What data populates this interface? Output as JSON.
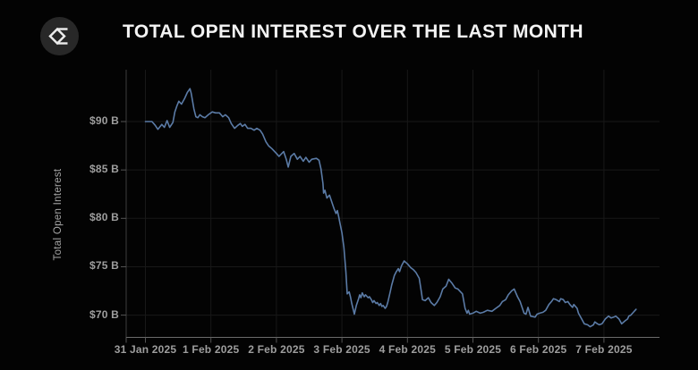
{
  "header": {
    "title": "TOTAL OPEN INTEREST OVER THE LAST MONTH",
    "logo": {
      "name": "sigma-diamond-logo",
      "circle_color": "#282828",
      "glyph_color": "#ededed"
    }
  },
  "colors": {
    "background": "#030303",
    "title_text": "#f4f4f4",
    "axis_label_text": "#9e9e9e",
    "y_axis_title_text": "#a6a6a6",
    "gridline": "#181818",
    "y_axis_line": "#3d3d3d",
    "x_axis_line": "#6b6b6b",
    "tick": "#555555",
    "series_line": "#5b7ba6"
  },
  "chart_data": {
    "type": "line",
    "title": "TOTAL OPEN INTEREST OVER THE LAST MONTH",
    "xlabel": "",
    "ylabel": "Total Open Interest",
    "y_unit": "billions USD",
    "grid": true,
    "legend": "none",
    "ylim": [
      68.3,
      95.3
    ],
    "y_ticks": [
      {
        "label": "$90 B",
        "value": 90
      },
      {
        "label": "$85 B",
        "value": 85
      },
      {
        "label": "$80 B",
        "value": 80
      },
      {
        "label": "$75 B",
        "value": 75
      },
      {
        "label": "$70 B",
        "value": 70
      }
    ],
    "x_ticks": [
      {
        "label": "31 Jan 2025",
        "day": 0
      },
      {
        "label": "1 Feb 2025",
        "day": 1
      },
      {
        "label": "2 Feb 2025",
        "day": 2
      },
      {
        "label": "3 Feb 2025",
        "day": 3
      },
      {
        "label": "4 Feb 2025",
        "day": 4
      },
      {
        "label": "5 Feb 2025",
        "day": 5
      },
      {
        "label": "6 Feb 2025",
        "day": 6
      },
      {
        "label": "7 Feb 2025",
        "day": 7
      }
    ],
    "series": [
      {
        "name": "Total Open Interest",
        "color": "#5b7ba6",
        "points": [
          [
            0.0,
            90.0
          ],
          [
            0.1,
            90.0
          ],
          [
            0.15,
            89.6
          ],
          [
            0.19,
            89.2
          ],
          [
            0.25,
            89.7
          ],
          [
            0.29,
            89.4
          ],
          [
            0.33,
            90.1
          ],
          [
            0.37,
            89.4
          ],
          [
            0.42,
            89.9
          ],
          [
            0.45,
            91.0
          ],
          [
            0.48,
            91.6
          ],
          [
            0.51,
            92.1
          ],
          [
            0.55,
            91.8
          ],
          [
            0.6,
            92.4
          ],
          [
            0.64,
            93.0
          ],
          [
            0.68,
            93.4
          ],
          [
            0.7,
            92.9
          ],
          [
            0.72,
            92.1
          ],
          [
            0.74,
            91.3
          ],
          [
            0.77,
            90.5
          ],
          [
            0.8,
            90.4
          ],
          [
            0.83,
            90.7
          ],
          [
            0.87,
            90.5
          ],
          [
            0.91,
            90.4
          ],
          [
            0.96,
            90.7
          ],
          [
            1.02,
            91.0
          ],
          [
            1.07,
            90.9
          ],
          [
            1.13,
            90.9
          ],
          [
            1.18,
            90.5
          ],
          [
            1.22,
            90.7
          ],
          [
            1.27,
            90.4
          ],
          [
            1.31,
            89.8
          ],
          [
            1.36,
            89.3
          ],
          [
            1.41,
            89.6
          ],
          [
            1.45,
            89.8
          ],
          [
            1.48,
            89.5
          ],
          [
            1.52,
            89.7
          ],
          [
            1.56,
            89.3
          ],
          [
            1.61,
            89.3
          ],
          [
            1.66,
            89.1
          ],
          [
            1.7,
            89.3
          ],
          [
            1.75,
            89.1
          ],
          [
            1.79,
            88.7
          ],
          [
            1.84,
            87.9
          ],
          [
            1.88,
            87.5
          ],
          [
            1.93,
            87.2
          ],
          [
            2.0,
            86.7
          ],
          [
            2.04,
            86.4
          ],
          [
            2.11,
            86.9
          ],
          [
            2.15,
            86.1
          ],
          [
            2.18,
            85.3
          ],
          [
            2.22,
            86.4
          ],
          [
            2.27,
            86.7
          ],
          [
            2.32,
            86.1
          ],
          [
            2.36,
            86.4
          ],
          [
            2.41,
            85.9
          ],
          [
            2.45,
            86.3
          ],
          [
            2.5,
            85.8
          ],
          [
            2.54,
            86.1
          ],
          [
            2.61,
            86.2
          ],
          [
            2.65,
            86.0
          ],
          [
            2.68,
            85.1
          ],
          [
            2.71,
            83.6
          ],
          [
            2.72,
            82.6
          ],
          [
            2.74,
            82.9
          ],
          [
            2.77,
            82.1
          ],
          [
            2.81,
            82.4
          ],
          [
            2.85,
            81.6
          ],
          [
            2.88,
            81.0
          ],
          [
            2.91,
            80.5
          ],
          [
            2.93,
            80.8
          ],
          [
            2.95,
            80.2
          ],
          [
            2.97,
            79.5
          ],
          [
            3.0,
            78.5
          ],
          [
            3.03,
            77.0
          ],
          [
            3.06,
            74.5
          ],
          [
            3.08,
            72.2
          ],
          [
            3.11,
            72.4
          ],
          [
            3.13,
            71.9
          ],
          [
            3.15,
            71.2
          ],
          [
            3.19,
            70.1
          ],
          [
            3.22,
            71.0
          ],
          [
            3.25,
            71.6
          ],
          [
            3.27,
            72.1
          ],
          [
            3.29,
            71.8
          ],
          [
            3.31,
            72.3
          ],
          [
            3.34,
            71.9
          ],
          [
            3.36,
            72.1
          ],
          [
            3.4,
            71.8
          ],
          [
            3.42,
            71.9
          ],
          [
            3.45,
            71.6
          ],
          [
            3.47,
            71.3
          ],
          [
            3.49,
            71.5
          ],
          [
            3.52,
            71.2
          ],
          [
            3.54,
            71.3
          ],
          [
            3.57,
            71.0
          ],
          [
            3.59,
            71.2
          ],
          [
            3.61,
            70.9
          ],
          [
            3.63,
            71.0
          ],
          [
            3.66,
            70.7
          ],
          [
            3.68,
            70.9
          ],
          [
            3.7,
            71.3
          ],
          [
            3.72,
            71.9
          ],
          [
            3.74,
            72.5
          ],
          [
            3.76,
            73.1
          ],
          [
            3.78,
            73.6
          ],
          [
            3.8,
            74.1
          ],
          [
            3.83,
            74.5
          ],
          [
            3.86,
            74.8
          ],
          [
            3.88,
            74.5
          ],
          [
            3.91,
            75.1
          ],
          [
            3.95,
            75.6
          ],
          [
            4.0,
            75.3
          ],
          [
            4.05,
            74.9
          ],
          [
            4.09,
            74.7
          ],
          [
            4.13,
            74.4
          ],
          [
            4.18,
            73.8
          ],
          [
            4.21,
            72.5
          ],
          [
            4.23,
            71.6
          ],
          [
            4.27,
            71.5
          ],
          [
            4.32,
            71.8
          ],
          [
            4.36,
            71.3
          ],
          [
            4.41,
            71.0
          ],
          [
            4.45,
            71.3
          ],
          [
            4.5,
            71.9
          ],
          [
            4.54,
            72.7
          ],
          [
            4.59,
            73.0
          ],
          [
            4.63,
            73.7
          ],
          [
            4.68,
            73.3
          ],
          [
            4.73,
            72.8
          ],
          [
            4.77,
            72.7
          ],
          [
            4.84,
            72.2
          ],
          [
            4.88,
            70.7
          ],
          [
            4.91,
            70.2
          ],
          [
            4.93,
            70.5
          ],
          [
            4.95,
            70.1
          ],
          [
            5.0,
            70.2
          ],
          [
            5.05,
            70.4
          ],
          [
            5.11,
            70.2
          ],
          [
            5.16,
            70.3
          ],
          [
            5.22,
            70.5
          ],
          [
            5.29,
            70.4
          ],
          [
            5.35,
            70.7
          ],
          [
            5.41,
            71.0
          ],
          [
            5.45,
            71.4
          ],
          [
            5.5,
            71.6
          ],
          [
            5.54,
            72.1
          ],
          [
            5.59,
            72.5
          ],
          [
            5.63,
            72.7
          ],
          [
            5.68,
            71.9
          ],
          [
            5.72,
            71.4
          ],
          [
            5.75,
            70.8
          ],
          [
            5.78,
            70.2
          ],
          [
            5.81,
            70.1
          ],
          [
            5.84,
            70.8
          ],
          [
            5.88,
            69.9
          ],
          [
            5.95,
            69.8
          ],
          [
            5.98,
            70.1
          ],
          [
            6.02,
            70.2
          ],
          [
            6.07,
            70.3
          ],
          [
            6.11,
            70.5
          ],
          [
            6.16,
            71.1
          ],
          [
            6.2,
            71.4
          ],
          [
            6.23,
            71.7
          ],
          [
            6.27,
            71.6
          ],
          [
            6.32,
            71.4
          ],
          [
            6.34,
            71.7
          ],
          [
            6.38,
            71.6
          ],
          [
            6.41,
            71.3
          ],
          [
            6.45,
            71.4
          ],
          [
            6.48,
            71.1
          ],
          [
            6.52,
            70.8
          ],
          [
            6.54,
            71.1
          ],
          [
            6.59,
            70.7
          ],
          [
            6.61,
            70.2
          ],
          [
            6.66,
            69.6
          ],
          [
            6.7,
            69.1
          ],
          [
            6.75,
            69.0
          ],
          [
            6.79,
            68.8
          ],
          [
            6.84,
            69.0
          ],
          [
            6.86,
            69.3
          ],
          [
            6.9,
            69.1
          ],
          [
            6.93,
            69.0
          ],
          [
            6.97,
            69.1
          ],
          [
            7.02,
            69.6
          ],
          [
            7.07,
            69.9
          ],
          [
            7.11,
            69.7
          ],
          [
            7.15,
            69.8
          ],
          [
            7.18,
            69.9
          ],
          [
            7.23,
            69.6
          ],
          [
            7.27,
            69.1
          ],
          [
            7.32,
            69.4
          ],
          [
            7.36,
            69.6
          ],
          [
            7.38,
            69.9
          ],
          [
            7.41,
            70.0
          ],
          [
            7.45,
            70.3
          ],
          [
            7.49,
            70.6
          ]
        ]
      }
    ]
  }
}
